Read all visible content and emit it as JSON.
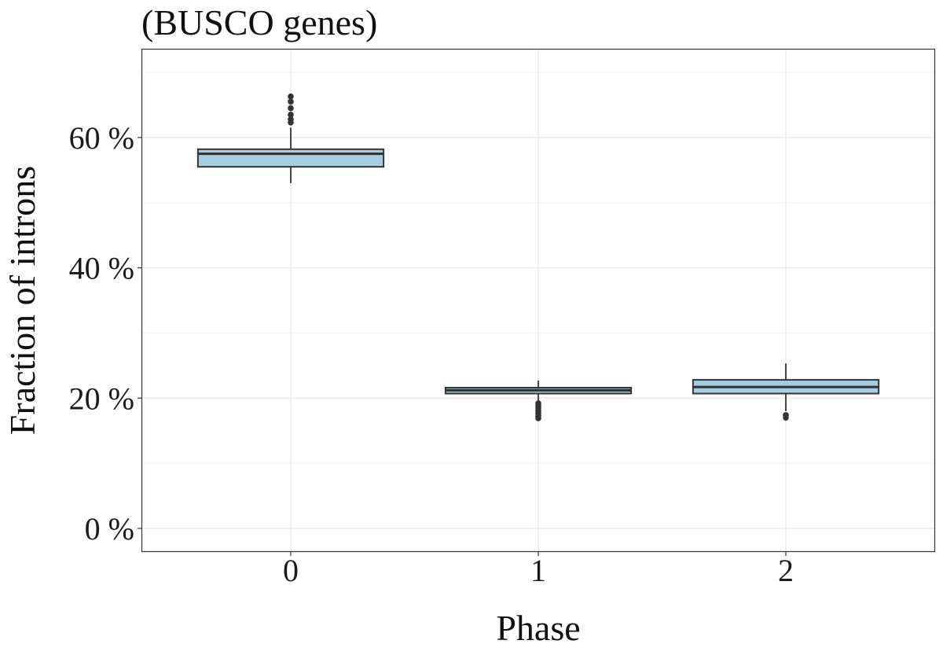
{
  "chart_data": {
    "type": "box",
    "title": "(BUSCO genes)",
    "xlabel": "Phase",
    "ylabel": "Fraction of introns",
    "y_unit_suffix": " %",
    "ylim": [
      -3.5,
      73.5
    ],
    "y_ticks": [
      0,
      20,
      40,
      60
    ],
    "y_minor_ticks": [
      10,
      30,
      50,
      70
    ],
    "categories": [
      "0",
      "1",
      "2"
    ],
    "grid": true,
    "box_fill": "#a6cee3",
    "box_stroke": "#333333",
    "boxes": [
      {
        "category": "0",
        "whisker_low": 53.0,
        "q1": 55.5,
        "median": 57.5,
        "q3": 58.2,
        "whisker_high": 61.5,
        "outliers": [
          62.3,
          62.8,
          63.5,
          64.5,
          65.5,
          66.3
        ]
      },
      {
        "category": "1",
        "whisker_low": 19.5,
        "q1": 20.7,
        "median": 21.2,
        "q3": 21.6,
        "whisker_high": 22.7,
        "outliers": [
          16.9,
          17.3,
          17.7,
          18.1,
          18.5,
          18.9,
          19.2
        ]
      },
      {
        "category": "2",
        "whisker_low": 18.0,
        "q1": 20.7,
        "median": 21.7,
        "q3": 22.8,
        "whisker_high": 25.3,
        "outliers": [
          17.0,
          17.4
        ]
      }
    ]
  }
}
